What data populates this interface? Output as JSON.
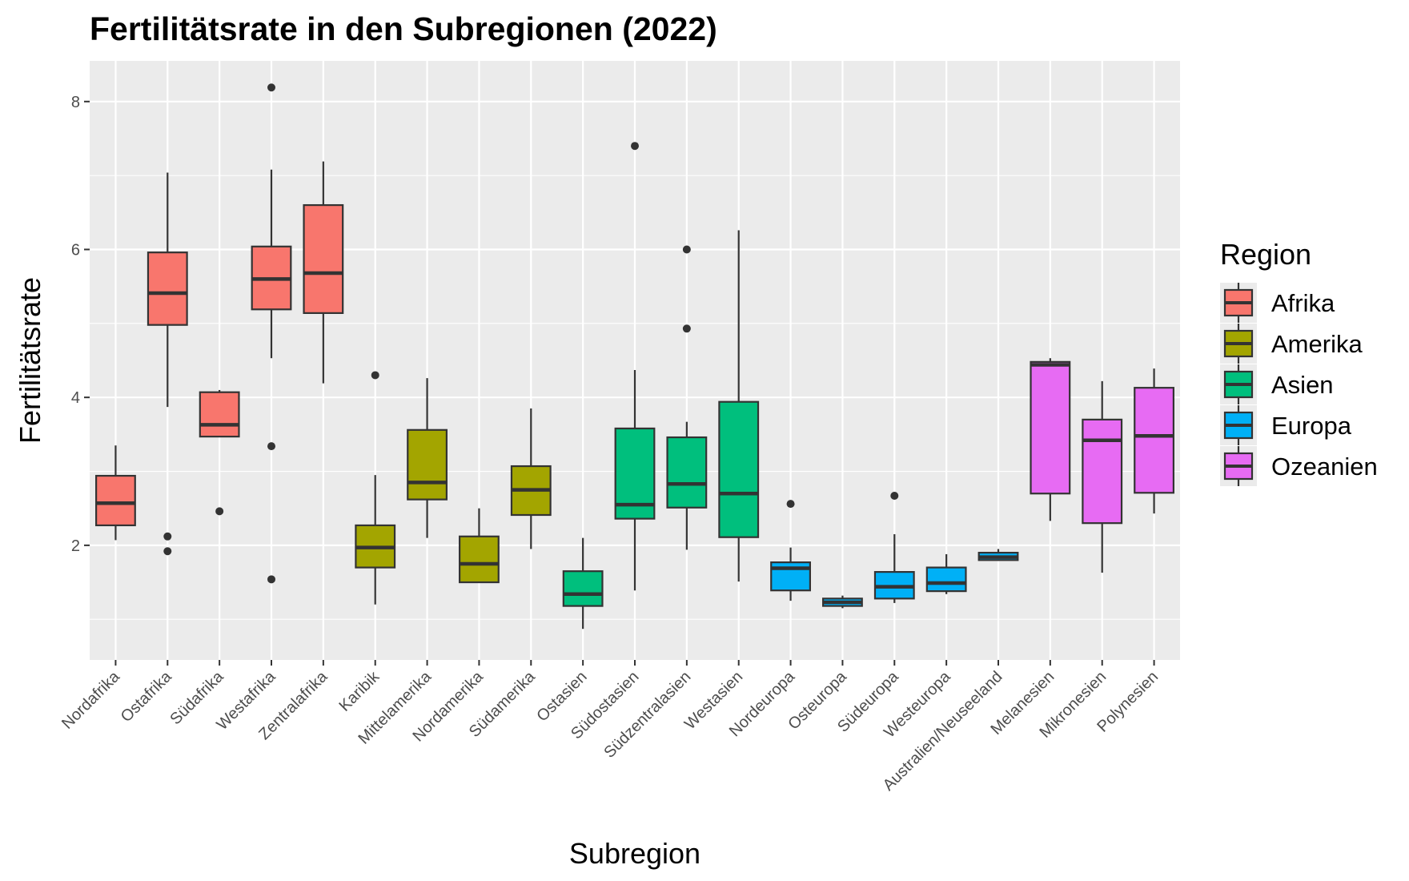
{
  "chart_data": {
    "type": "boxplot",
    "title": "Fertilitätsrate in den Subregionen (2022)",
    "xlabel": "Subregion",
    "ylabel": "Fertilitätsrate",
    "ylim": [
      0.45,
      8.55
    ],
    "yticks": [
      2,
      4,
      6,
      8
    ],
    "grid": true,
    "legend": {
      "title": "Region",
      "position": "right",
      "entries": [
        {
          "name": "Afrika",
          "color": "#F8766D"
        },
        {
          "name": "Amerika",
          "color": "#A3A500"
        },
        {
          "name": "Asien",
          "color": "#00BF7D"
        },
        {
          "name": "Europa",
          "color": "#00B0F6"
        },
        {
          "name": "Ozeanien",
          "color": "#E76BF3"
        }
      ]
    },
    "categories": [
      "Nordafrika",
      "Ostafrika",
      "Südafrika",
      "Westafrika",
      "Zentralafrika",
      "Karibik",
      "Mittelamerika",
      "Nordamerika",
      "Südamerika",
      "Ostasien",
      "Südostasien",
      "Südzentralasien",
      "Westasien",
      "Nordeuropa",
      "Osteuropa",
      "Südeuropa",
      "Westeuropa",
      "Australien/Neuseeland",
      "Melanesien",
      "Mikronesien",
      "Polynesien"
    ],
    "boxes": [
      {
        "subregion": "Nordafrika",
        "region": "Afrika",
        "min": 2.07,
        "q1": 2.27,
        "median": 2.57,
        "q3": 2.94,
        "max": 3.35,
        "outliers": []
      },
      {
        "subregion": "Ostafrika",
        "region": "Afrika",
        "min": 3.87,
        "q1": 4.98,
        "median": 5.41,
        "q3": 5.96,
        "max": 7.04,
        "outliers": [
          2.12,
          1.92
        ]
      },
      {
        "subregion": "Südafrika",
        "region": "Afrika",
        "min": 3.47,
        "q1": 3.47,
        "median": 3.63,
        "q3": 4.07,
        "max": 4.1,
        "outliers": [
          2.46
        ]
      },
      {
        "subregion": "Westafrika",
        "region": "Afrika",
        "min": 4.53,
        "q1": 5.19,
        "median": 5.6,
        "q3": 6.04,
        "max": 7.08,
        "outliers": [
          8.19,
          3.34,
          1.54
        ]
      },
      {
        "subregion": "Zentralafrika",
        "region": "Afrika",
        "min": 4.19,
        "q1": 5.14,
        "median": 5.68,
        "q3": 6.6,
        "max": 7.19,
        "outliers": []
      },
      {
        "subregion": "Karibik",
        "region": "Amerika",
        "min": 1.2,
        "q1": 1.7,
        "median": 1.97,
        "q3": 2.27,
        "max": 2.95,
        "outliers": [
          4.3
        ]
      },
      {
        "subregion": "Mittelamerika",
        "region": "Amerika",
        "min": 2.1,
        "q1": 2.62,
        "median": 2.85,
        "q3": 3.56,
        "max": 4.26,
        "outliers": []
      },
      {
        "subregion": "Nordamerika",
        "region": "Amerika",
        "min": 1.5,
        "q1": 1.5,
        "median": 1.75,
        "q3": 2.12,
        "max": 2.5,
        "outliers": []
      },
      {
        "subregion": "Südamerika",
        "region": "Amerika",
        "min": 1.95,
        "q1": 2.41,
        "median": 2.75,
        "q3": 3.07,
        "max": 3.85,
        "outliers": []
      },
      {
        "subregion": "Ostasien",
        "region": "Asien",
        "min": 0.87,
        "q1": 1.18,
        "median": 1.34,
        "q3": 1.65,
        "max": 2.1,
        "outliers": []
      },
      {
        "subregion": "Südostasien",
        "region": "Asien",
        "min": 1.39,
        "q1": 2.36,
        "median": 2.55,
        "q3": 3.58,
        "max": 4.37,
        "outliers": [
          7.4
        ]
      },
      {
        "subregion": "Südzentralasien",
        "region": "Asien",
        "min": 1.94,
        "q1": 2.51,
        "median": 2.83,
        "q3": 3.46,
        "max": 3.67,
        "outliers": [
          6.0,
          4.93
        ]
      },
      {
        "subregion": "Westasien",
        "region": "Asien",
        "min": 1.51,
        "q1": 2.11,
        "median": 2.7,
        "q3": 3.94,
        "max": 6.26,
        "outliers": []
      },
      {
        "subregion": "Nordeuropa",
        "region": "Europa",
        "min": 1.25,
        "q1": 1.39,
        "median": 1.69,
        "q3": 1.77,
        "max": 1.97,
        "outliers": [
          2.56
        ]
      },
      {
        "subregion": "Osteuropa",
        "region": "Europa",
        "min": 1.15,
        "q1": 1.18,
        "median": 1.23,
        "q3": 1.28,
        "max": 1.32,
        "outliers": []
      },
      {
        "subregion": "Südeuropa",
        "region": "Europa",
        "min": 1.22,
        "q1": 1.28,
        "median": 1.44,
        "q3": 1.64,
        "max": 2.15,
        "outliers": [
          2.67
        ]
      },
      {
        "subregion": "Westeuropa",
        "region": "Europa",
        "min": 1.34,
        "q1": 1.38,
        "median": 1.49,
        "q3": 1.7,
        "max": 1.88,
        "outliers": []
      },
      {
        "subregion": "Australien/Neuseeland",
        "region": "Europa",
        "min": 1.79,
        "q1": 1.8,
        "median": 1.84,
        "q3": 1.9,
        "max": 1.95,
        "outliers": []
      },
      {
        "subregion": "Melanesien",
        "region": "Ozeanien",
        "min": 2.33,
        "q1": 2.7,
        "median": 4.44,
        "q3": 4.48,
        "max": 4.53,
        "outliers": []
      },
      {
        "subregion": "Mikronesien",
        "region": "Ozeanien",
        "min": 1.63,
        "q1": 2.3,
        "median": 3.42,
        "q3": 3.7,
        "max": 4.22,
        "outliers": []
      },
      {
        "subregion": "Polynesien",
        "region": "Ozeanien",
        "min": 2.43,
        "q1": 2.71,
        "median": 3.48,
        "q3": 4.13,
        "max": 4.39,
        "outliers": []
      }
    ]
  }
}
